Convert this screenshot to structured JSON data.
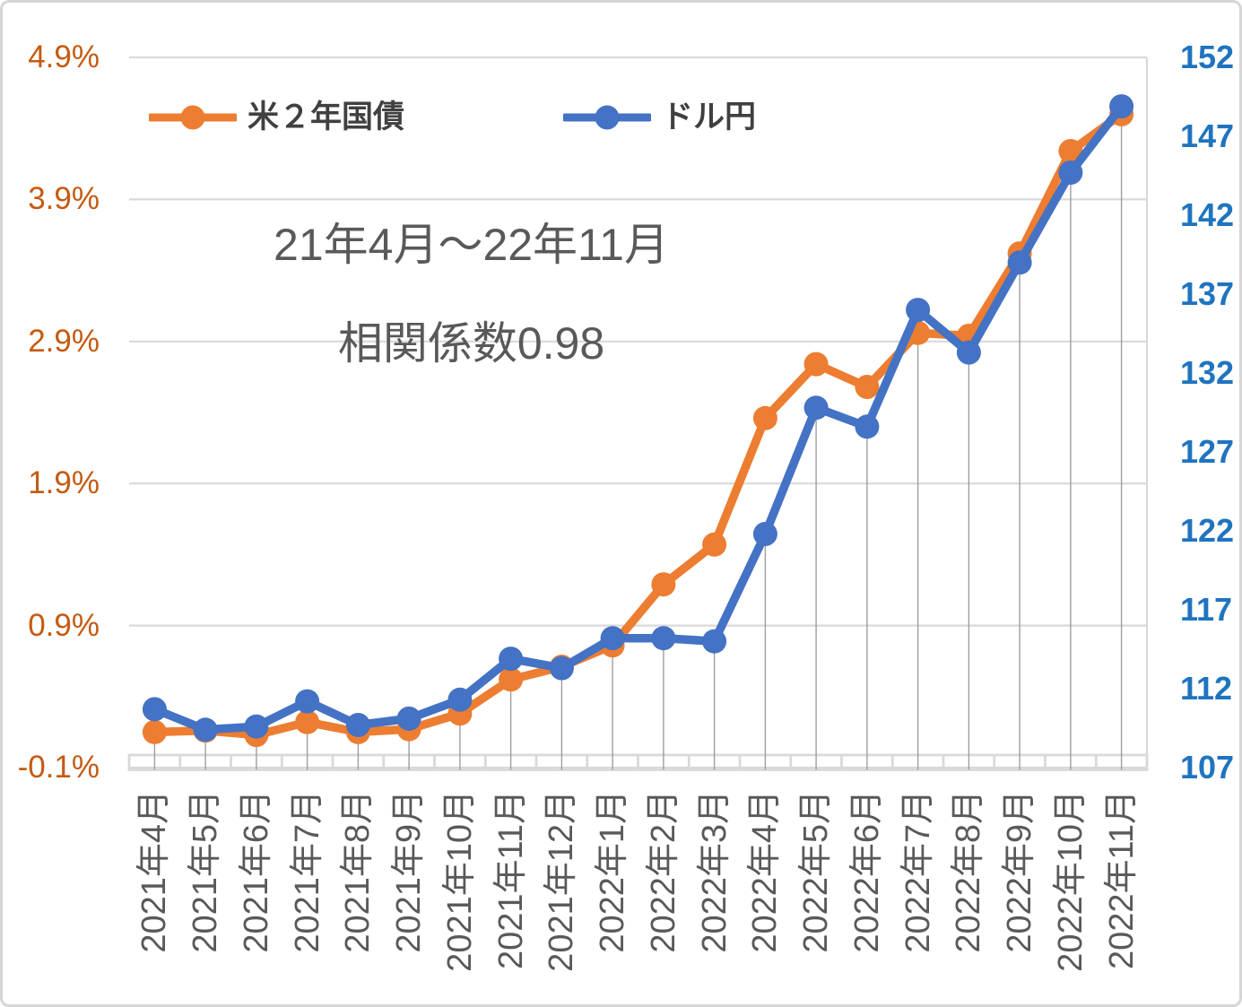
{
  "chart_data": {
    "type": "line",
    "title_lines": [
      "21年4月～22年11月",
      "相関係数0.98"
    ],
    "legend_position": "top",
    "grid": true,
    "categories": [
      "2021年4月",
      "2021年5月",
      "2021年6月",
      "2021年7月",
      "2021年8月",
      "2021年9月",
      "2021年10月",
      "2021年11月",
      "2021年12月",
      "2022年1月",
      "2022年2月",
      "2022年3月",
      "2022年4月",
      "2022年5月",
      "2022年6月",
      "2022年7月",
      "2022年8月",
      "2022年9月",
      "2022年10月",
      "2022年11月"
    ],
    "series": [
      {
        "name": "米２年国債",
        "axis": "left",
        "unit": "%",
        "color": "#ED7D31",
        "values": [
          0.15,
          0.16,
          0.13,
          0.22,
          0.15,
          0.17,
          0.28,
          0.52,
          0.61,
          0.76,
          1.19,
          1.47,
          2.36,
          2.74,
          2.58,
          2.96,
          2.94,
          3.52,
          4.24,
          4.5
        ]
      },
      {
        "name": "ドル円",
        "axis": "right",
        "unit": "JPY",
        "color": "#4472C4",
        "values": [
          110.7,
          109.4,
          109.6,
          111.2,
          109.7,
          110.1,
          111.3,
          113.9,
          113.3,
          115.2,
          115.2,
          115.0,
          121.8,
          129.8,
          128.6,
          136.0,
          133.3,
          139.0,
          144.7,
          148.9
        ]
      }
    ],
    "left_axis": {
      "ticks": [
        "4.9%",
        "3.9%",
        "2.9%",
        "1.9%",
        "0.9%",
        "-0.1%"
      ],
      "tick_values": [
        4.9,
        3.9,
        2.9,
        1.9,
        0.9,
        -0.1
      ],
      "min": -0.1,
      "max": 4.9,
      "label_color": "#C55A11"
    },
    "right_axis": {
      "ticks": [
        "152",
        "147",
        "142",
        "137",
        "132",
        "127",
        "122",
        "117",
        "112",
        "107"
      ],
      "tick_values": [
        152,
        147,
        142,
        137,
        132,
        127,
        122,
        117,
        112,
        107
      ],
      "min": 107,
      "max": 152,
      "label_color": "#1F74BF"
    }
  }
}
